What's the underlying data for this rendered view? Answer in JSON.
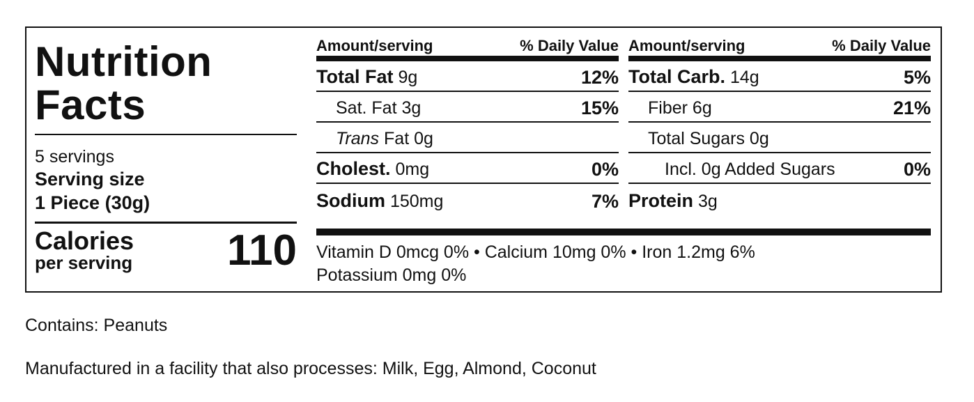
{
  "label": {
    "title_line1": "Nutrition",
    "title_line2": "Facts",
    "servings": "5 servings",
    "serving_size_label": "Serving size",
    "serving_size_value": "1 Piece (30g)",
    "calories_label": "Calories",
    "calories_sub": "per serving",
    "calories_value": "110",
    "header_left": "Amount/serving",
    "header_right": "% Daily Value",
    "col_a": [
      {
        "name": "Total Fat",
        "amount": "9g",
        "dv": "12%"
      },
      {
        "name": "Sat. Fat",
        "amount": "3g",
        "dv": "15%"
      },
      {
        "name": "Trans",
        "amount": "Fat 0g",
        "dv": ""
      },
      {
        "name": "Cholest.",
        "amount": "0mg",
        "dv": "0%"
      },
      {
        "name": "Sodium",
        "amount": "150mg",
        "dv": "7%"
      }
    ],
    "col_b": [
      {
        "name": "Total Carb.",
        "amount": "14g",
        "dv": "5%"
      },
      {
        "name": "Fiber",
        "amount": "6g",
        "dv": "21%"
      },
      {
        "name": "Total Sugars",
        "amount": "0g",
        "dv": ""
      },
      {
        "name": "Incl. 0g Added Sugars",
        "amount": "",
        "dv": "0%"
      },
      {
        "name": "Protein",
        "amount": "3g",
        "dv": ""
      }
    ],
    "micronutrients_line1": "Vitamin D 0mcg 0% • Calcium 10mg 0% • Iron 1.2mg 6%",
    "micronutrients_line2": "Potassium 0mg 0%"
  },
  "notes": {
    "contains": "Contains: Peanuts",
    "facility": "Manufactured in a facility that also processes: Milk, Egg, Almond, Coconut"
  }
}
